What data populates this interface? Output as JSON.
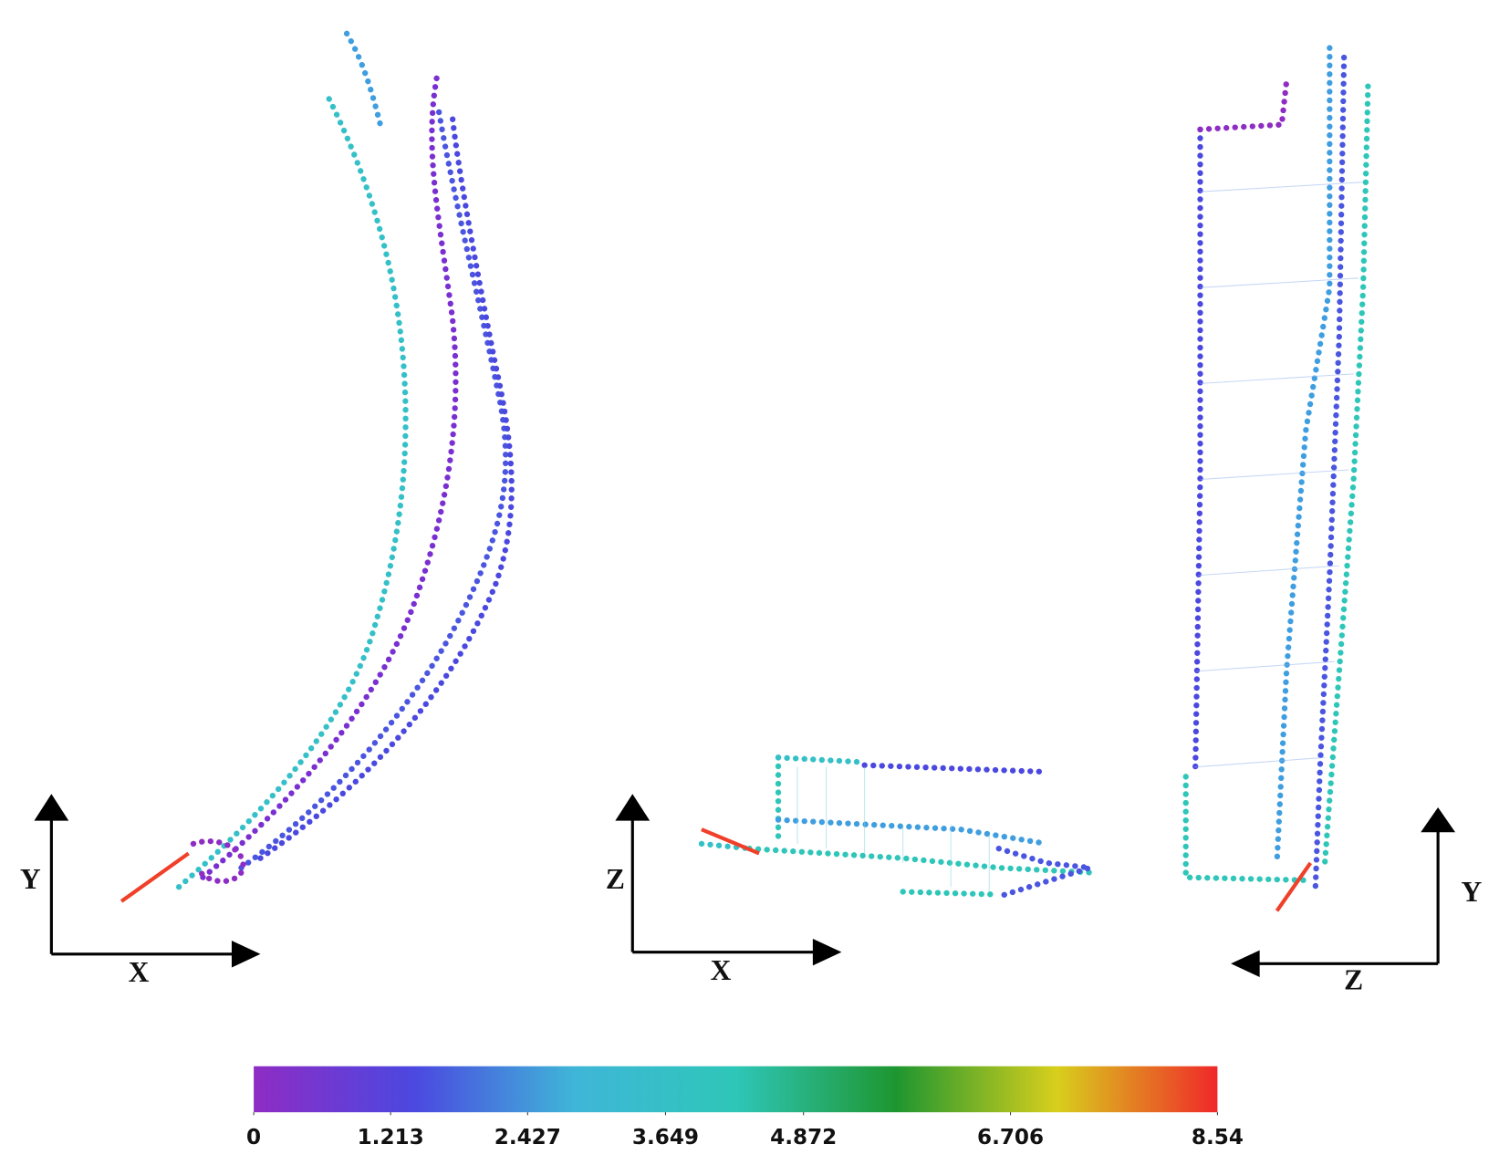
{
  "panels": [
    {
      "vertical_axis": "Y",
      "horizontal_axis": "X"
    },
    {
      "vertical_axis": "Z",
      "horizontal_axis": "X"
    },
    {
      "vertical_axis": "Y",
      "horizontal_axis": "Z"
    }
  ],
  "colorbar": {
    "lim": [
      0,
      8.54
    ],
    "ticks": [
      0,
      1.213,
      2.427,
      3.649,
      4.872,
      6.706,
      8.54
    ],
    "colors": [
      "#8e2cc4",
      "#4b48e0",
      "#3fb6d8",
      "#2ec6b8",
      "#1e9630",
      "#d8cf1c",
      "#f0282a"
    ]
  }
}
